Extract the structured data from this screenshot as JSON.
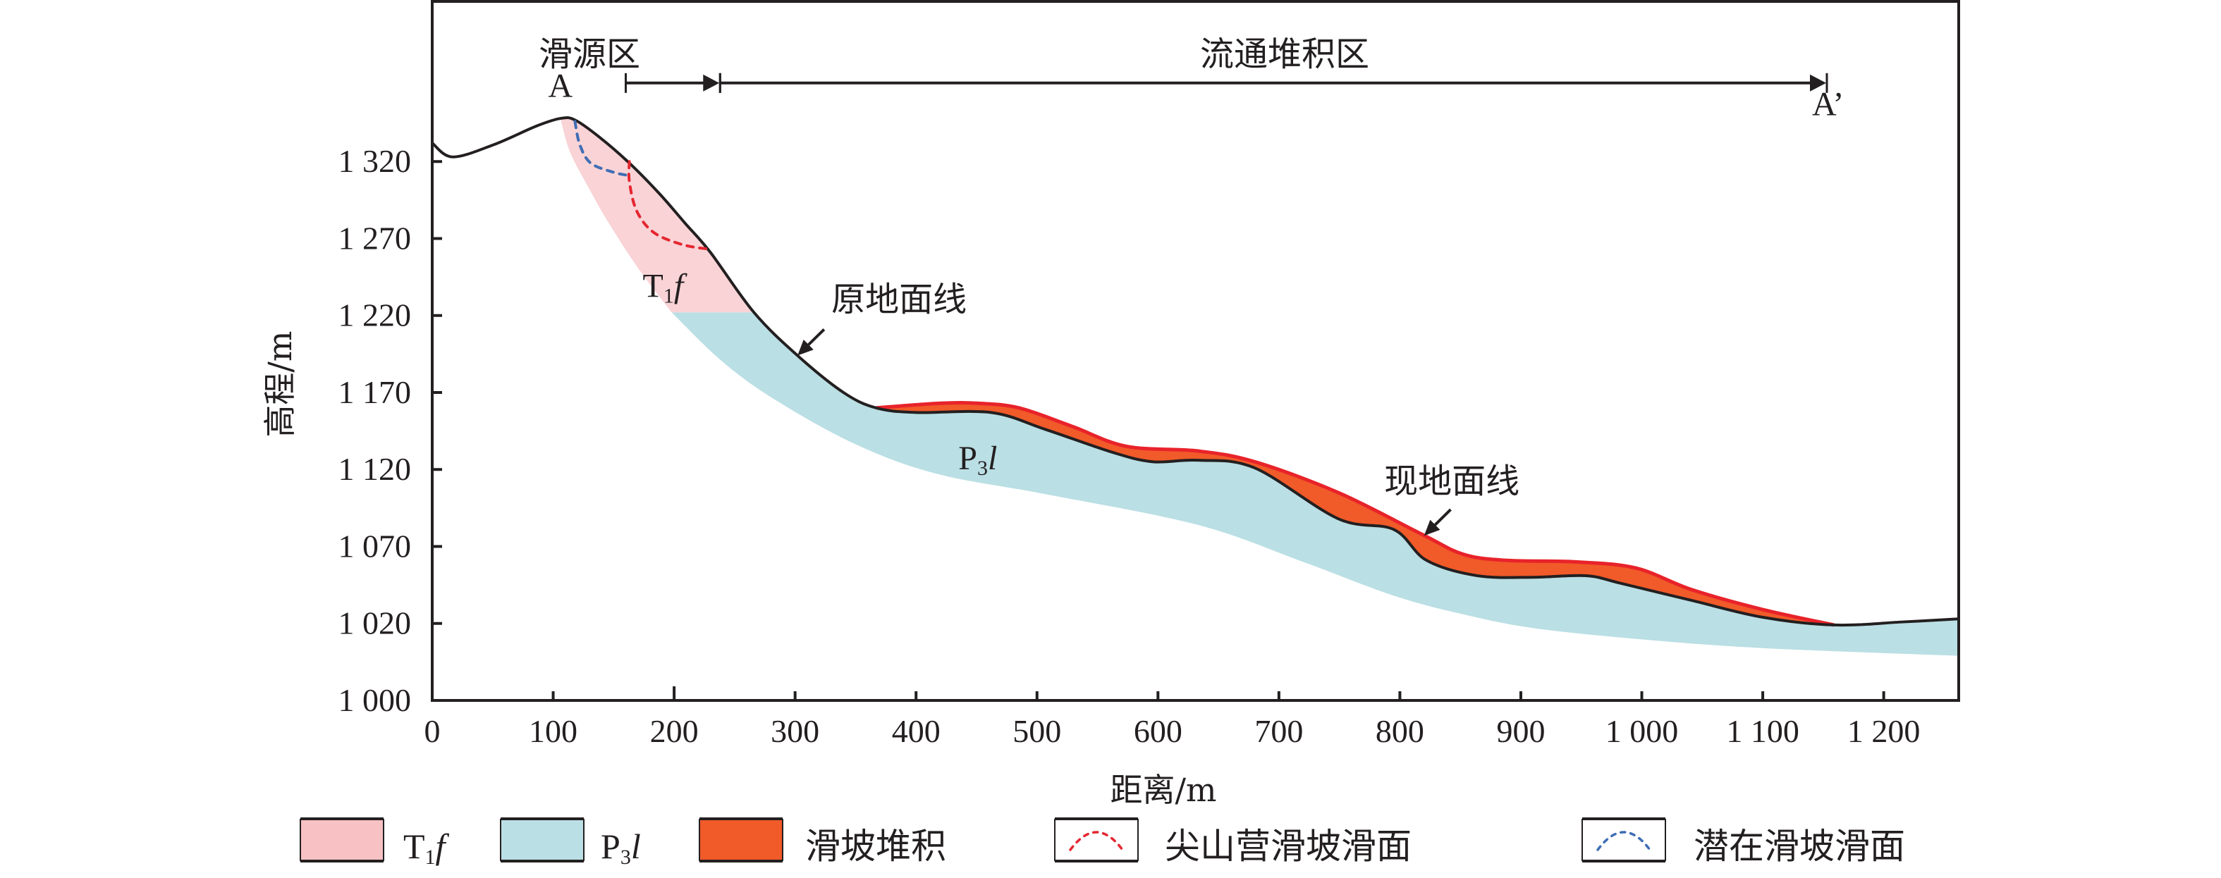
{
  "chart_data": {
    "type": "area",
    "title": "",
    "xlabel": "距离/m",
    "ylabel": "高程/m",
    "xlim": [
      0,
      1262
    ],
    "ylim": [
      970,
      1424
    ],
    "x_ticks": [
      0,
      100,
      200,
      300,
      400,
      500,
      600,
      700,
      800,
      900,
      1000,
      1100,
      1200
    ],
    "x_tick_labels": [
      "0",
      "100",
      "200",
      "300",
      "400",
      "500",
      "600",
      "700",
      "800",
      "900",
      "1 000",
      "1 100",
      "1 200"
    ],
    "y_ticks": [
      1320,
      1270,
      1220,
      1170,
      1120,
      1070,
      1020
    ],
    "y_tick_labels": [
      "1 320",
      "1 270",
      "1 220",
      "1 170",
      "1 120",
      "1 070",
      "1 020"
    ],
    "y_axis_break_label": "1 000",
    "grid": false,
    "legend_position": "bottom",
    "series": [
      {
        "name": "原地面线",
        "kind": "line",
        "color": "#231f20",
        "points": [
          [
            0,
            1332
          ],
          [
            17,
            1323
          ],
          [
            51,
            1331
          ],
          [
            86,
            1343
          ],
          [
            106,
            1348
          ],
          [
            118,
            1347
          ],
          [
            138,
            1336
          ],
          [
            163,
            1319
          ],
          [
            188,
            1299
          ],
          [
            209,
            1280
          ],
          [
            230,
            1261
          ],
          [
            266,
            1222
          ],
          [
            302,
            1194
          ],
          [
            340,
            1170
          ],
          [
            367,
            1160
          ],
          [
            400,
            1157
          ],
          [
            462,
            1157
          ],
          [
            507,
            1146
          ],
          [
            563,
            1131
          ],
          [
            596,
            1125
          ],
          [
            633,
            1126
          ],
          [
            680,
            1121
          ],
          [
            749,
            1088
          ],
          [
            795,
            1081
          ],
          [
            822,
            1061
          ],
          [
            864,
            1051
          ],
          [
            910,
            1050
          ],
          [
            954,
            1051
          ],
          [
            983,
            1046
          ],
          [
            1041,
            1035
          ],
          [
            1100,
            1024
          ],
          [
            1159,
            1019
          ],
          [
            1216,
            1021
          ],
          [
            1262,
            1023
          ]
        ]
      },
      {
        "name": "滑坡堆积",
        "kind": "area-top",
        "color": "#f15a29",
        "edge_color": "#e8232a",
        "points": [
          [
            367,
            1160
          ],
          [
            420,
            1163
          ],
          [
            451,
            1163
          ],
          [
            485,
            1160
          ],
          [
            529,
            1148
          ],
          [
            574,
            1135
          ],
          [
            633,
            1132
          ],
          [
            680,
            1125
          ],
          [
            749,
            1105
          ],
          [
            818,
            1078
          ],
          [
            852,
            1065
          ],
          [
            887,
            1061
          ],
          [
            945,
            1060
          ],
          [
            995,
            1056
          ],
          [
            1041,
            1042
          ],
          [
            1100,
            1029
          ],
          [
            1159,
            1019
          ]
        ]
      },
      {
        "name": "T1f",
        "kind": "area-boundary",
        "color": "#f9d3d6",
        "left_boundary": [
          [
            106,
            1348
          ],
          [
            114,
            1326
          ],
          [
            130,
            1302
          ],
          [
            146,
            1280
          ],
          [
            170,
            1251
          ],
          [
            198,
            1222
          ]
        ],
        "bottom_elevation": 1222
      },
      {
        "name": "P3l",
        "kind": "area-bottom",
        "color": "#badfe4",
        "points": [
          [
            198,
            1222
          ],
          [
            240,
            1190
          ],
          [
            284,
            1165
          ],
          [
            351,
            1136
          ],
          [
            418,
            1117
          ],
          [
            507,
            1104
          ],
          [
            633,
            1084
          ],
          [
            720,
            1060
          ],
          [
            795,
            1038
          ],
          [
            852,
            1026
          ],
          [
            910,
            1017
          ],
          [
            995,
            1010
          ],
          [
            1100,
            1004
          ],
          [
            1262,
            999
          ]
        ]
      },
      {
        "name": "尖山营滑坡滑面",
        "kind": "dashed-line",
        "color": "#e52630",
        "points": [
          [
            163,
            1320
          ],
          [
            163,
            1307
          ],
          [
            169,
            1288
          ],
          [
            183,
            1274
          ],
          [
            207,
            1266
          ],
          [
            230,
            1263
          ]
        ]
      },
      {
        "name": "潜在滑坡滑面",
        "kind": "dashed-line",
        "color": "#3e6db5",
        "points": [
          [
            118,
            1346
          ],
          [
            122,
            1331
          ],
          [
            131,
            1319
          ],
          [
            150,
            1313
          ],
          [
            162,
            1311
          ]
        ]
      }
    ],
    "annotations": [
      {
        "name": "point-a",
        "text": "A",
        "x": 106,
        "y": 1362
      },
      {
        "name": "point-a-prime",
        "text": "A’",
        "x": 1154,
        "y": 1350
      },
      {
        "name": "t1f-label",
        "text_main": "T",
        "text_sub": "1",
        "text_italic": "f",
        "x": 174,
        "y": 1232
      },
      {
        "name": "p3l-label",
        "text_main": "P",
        "text_sub": "3",
        "text_italic": "l",
        "x": 435,
        "y": 1120
      },
      {
        "name": "original-ground-label",
        "text": "原地面线",
        "x": 330,
        "y": 1223,
        "arrow_from": [
          324,
          1211
        ],
        "arrow_to": [
          302,
          1194
        ]
      },
      {
        "name": "current-ground-label",
        "text": "现地面线",
        "x": 787,
        "y": 1105,
        "arrow_from": [
          842,
          1094
        ],
        "arrow_to": [
          820,
          1077
        ]
      }
    ],
    "zones": [
      {
        "name": "source-zone",
        "text": "滑源区",
        "from": 160,
        "to": 238,
        "elevation": 1371
      },
      {
        "name": "flow-deposit-zone",
        "text": "流通堆积区",
        "from": 238,
        "to": 1153,
        "elevation": 1371
      }
    ],
    "legend": [
      {
        "kind": "swatch",
        "color": "#f8c1c3",
        "label_main": "T",
        "label_sub": "1",
        "label_italic": "f"
      },
      {
        "kind": "swatch",
        "color": "#badfe4",
        "label_main": "P",
        "label_sub": "3",
        "label_italic": "l"
      },
      {
        "kind": "swatch",
        "color": "#f15a29",
        "label": "滑坡堆积"
      },
      {
        "kind": "dashed-arc",
        "color": "#e52630",
        "label": "尖山营滑坡滑面"
      },
      {
        "kind": "dashed-arc",
        "color": "#3e6db5",
        "label": "潜在滑坡滑面"
      }
    ]
  }
}
